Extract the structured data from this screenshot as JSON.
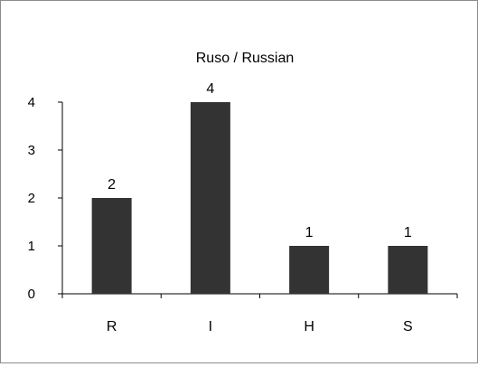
{
  "chart_data": {
    "type": "bar",
    "title": "Ruso / Russian",
    "categories": [
      "R",
      "I",
      "H",
      "S"
    ],
    "values": [
      2,
      4,
      1,
      1
    ],
    "data_labels": [
      "2",
      "4",
      "1",
      "1"
    ],
    "y_ticks": [
      "0",
      "1",
      "2",
      "3",
      "4"
    ],
    "ylim": [
      0,
      4
    ],
    "xlabel": "",
    "ylabel": "",
    "grid": false,
    "legend": "none",
    "bar_color": "#333333"
  }
}
